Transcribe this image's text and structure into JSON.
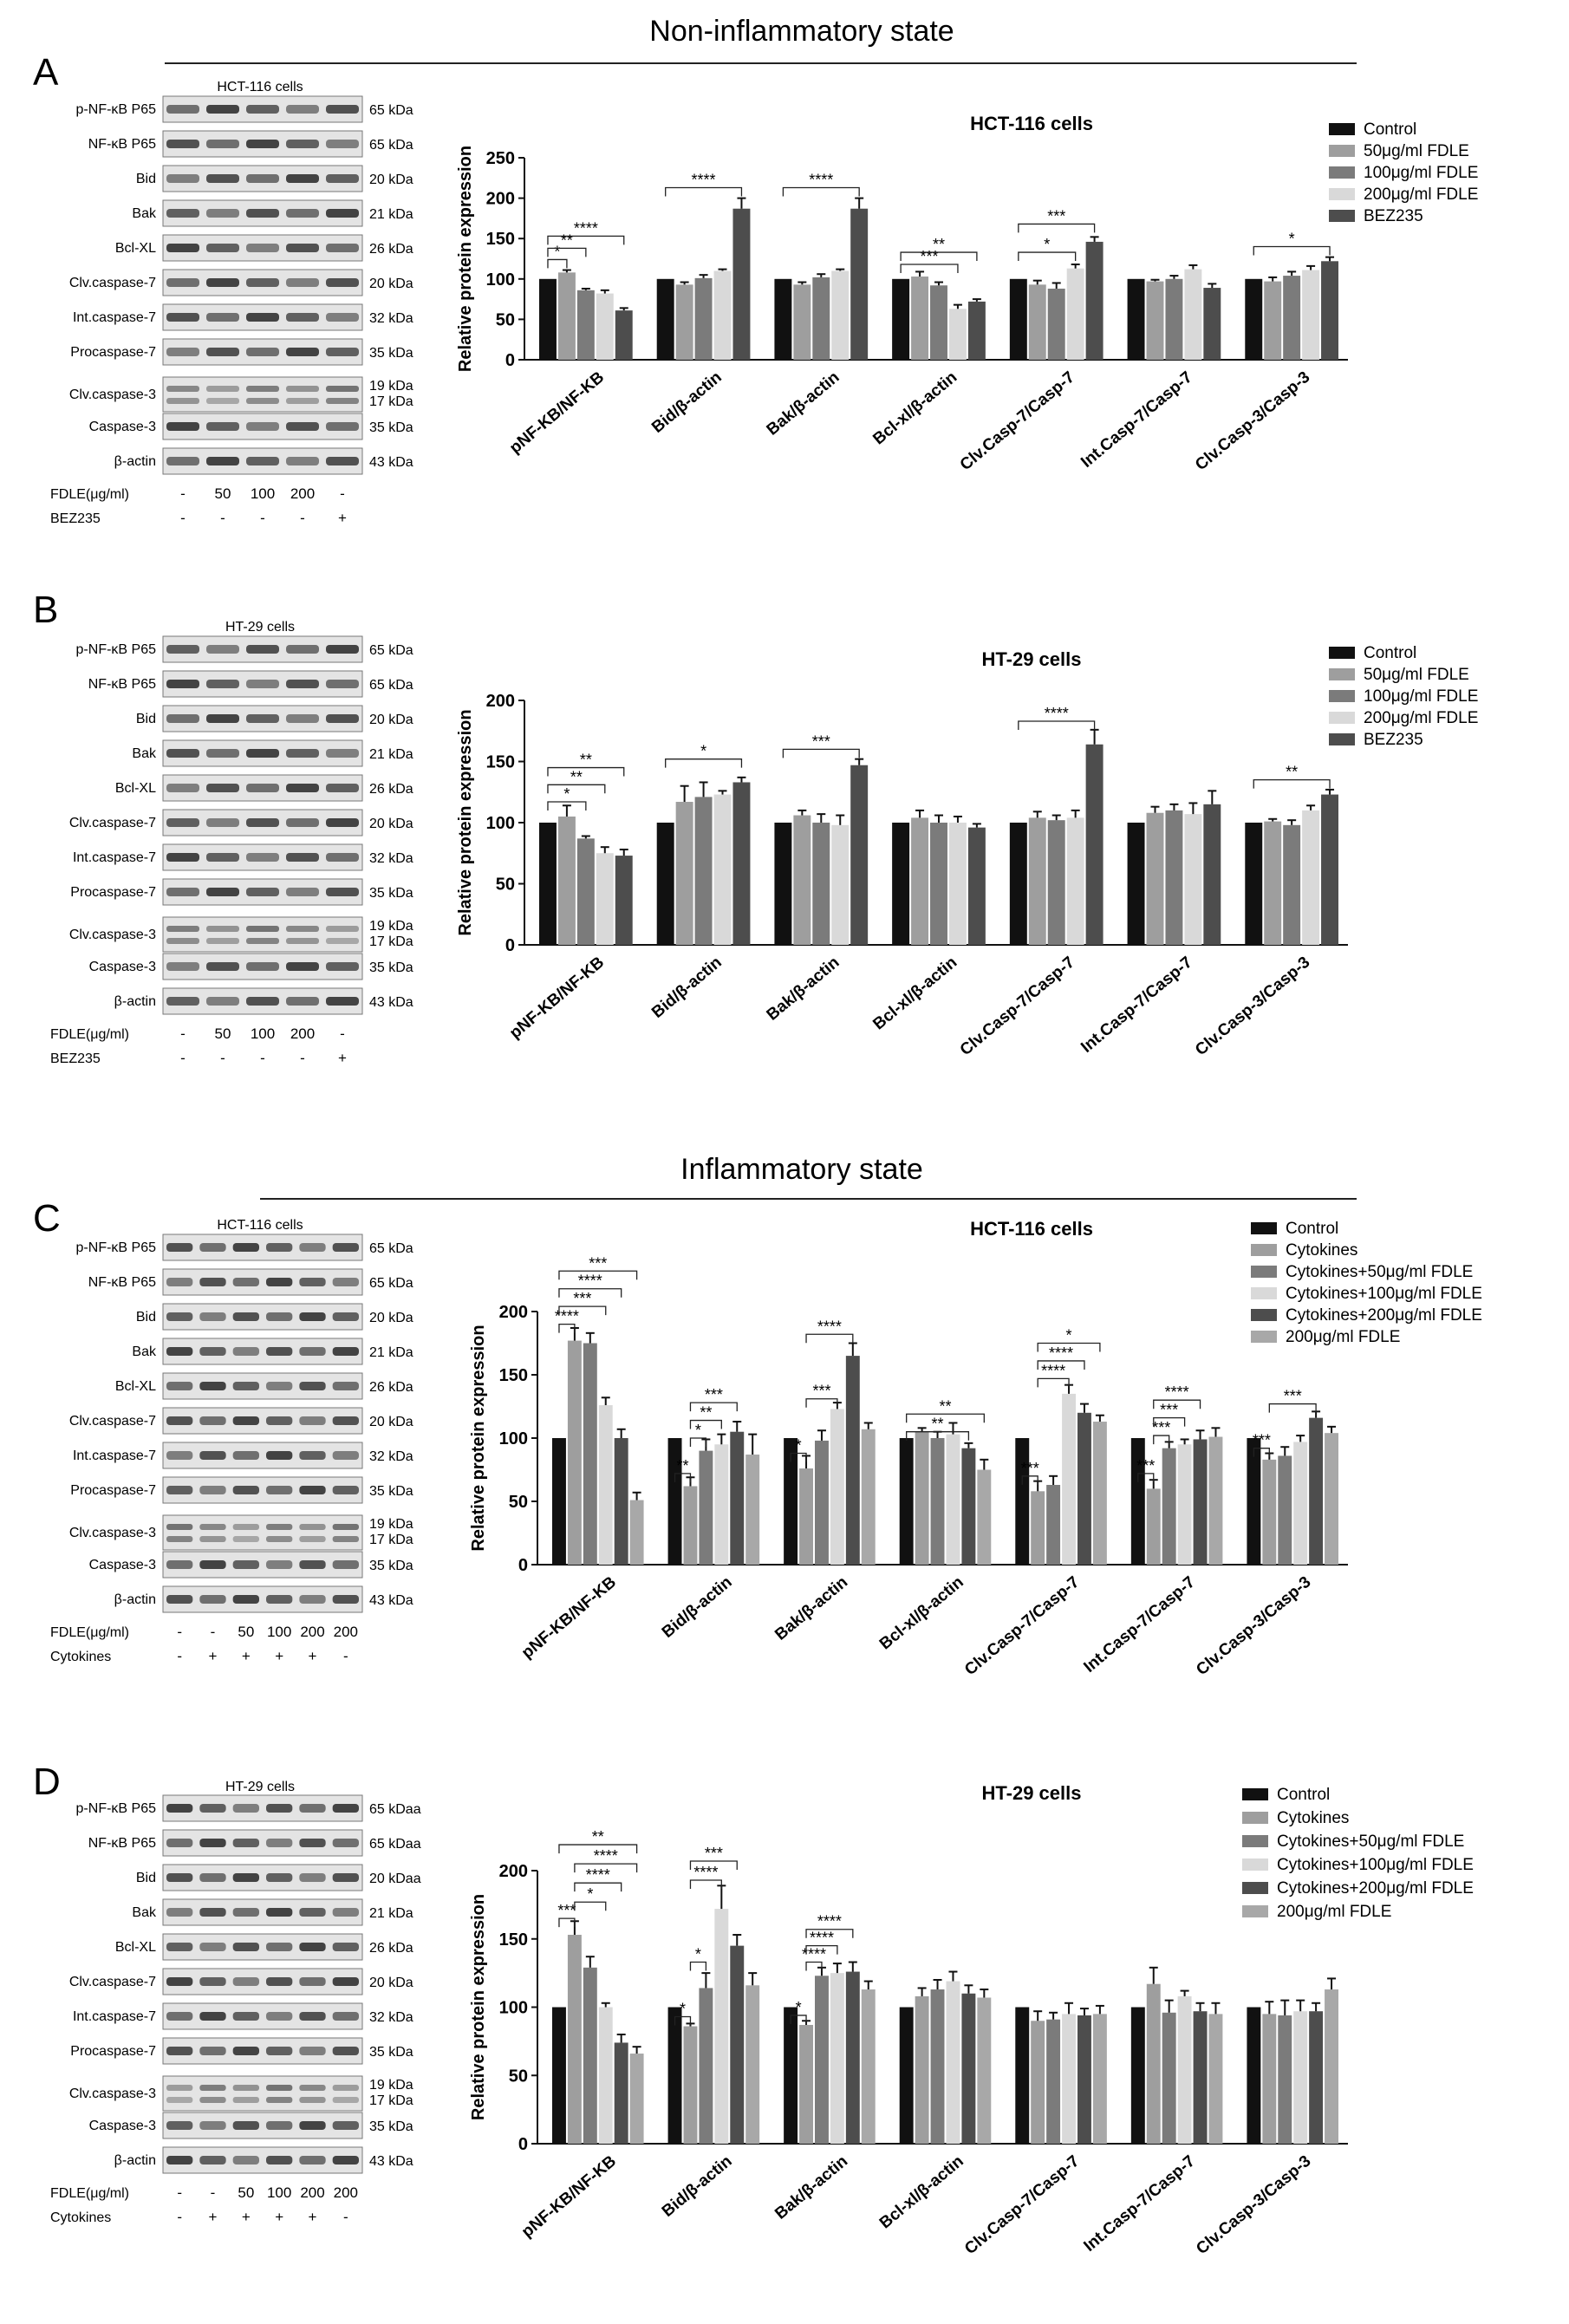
{
  "sections": {
    "noninflam": "Non-inflammatory state",
    "inflam": "Inflammatory state"
  },
  "colors": {
    "set5": [
      "#111111",
      "#9e9e9e",
      "#7b7b7b",
      "#d9d9d9",
      "#4d4d4d"
    ],
    "set6": [
      "#111111",
      "#9e9e9e",
      "#7b7b7b",
      "#d9d9d9",
      "#4d4d4d",
      "#a8a8a8"
    ],
    "blot_bg": "#e4e4e4",
    "band": "#2a2a2a"
  },
  "blot_rows": [
    {
      "label": "p-NF-κB P65",
      "kda": [
        "65 kDa"
      ]
    },
    {
      "label": "NF-κB P65",
      "kda": [
        "65 kDa"
      ]
    },
    {
      "label": "Bid",
      "kda": [
        "20 kDa"
      ]
    },
    {
      "label": "Bak",
      "kda": [
        "21 kDa"
      ]
    },
    {
      "label": "Bcl-XL",
      "kda": [
        "26 kDa"
      ]
    },
    {
      "label": "Clv.caspase-7",
      "kda": [
        "20 kDa"
      ]
    },
    {
      "label": "Int.caspase-7",
      "kda": [
        "32 kDa"
      ]
    },
    {
      "label": "Procaspase-7",
      "kda": [
        "35 kDa"
      ]
    },
    {
      "label": "Clv.caspase-3",
      "kda": [
        "19 kDa",
        "17 kDa"
      ]
    },
    {
      "label": "Caspase-3",
      "kda": [
        "35 kDa"
      ]
    },
    {
      "label": "β-actin",
      "kda": [
        "43 kDa"
      ]
    }
  ],
  "blot_rows_D": [
    {
      "label": "p-NF-κB P65",
      "kda": [
        "65 kDaa"
      ]
    },
    {
      "label": "NF-κB P65",
      "kda": [
        "65 kDaa"
      ]
    },
    {
      "label": "Bid",
      "kda": [
        "20 kDaa"
      ]
    },
    {
      "label": "Bak",
      "kda": [
        "21 kDa"
      ]
    },
    {
      "label": "Bcl-XL",
      "kda": [
        "26 kDa"
      ]
    },
    {
      "label": "Clv.caspase-7",
      "kda": [
        "20 kDa"
      ]
    },
    {
      "label": "Int.caspase-7",
      "kda": [
        "32 kDa"
      ]
    },
    {
      "label": "Procaspase-7",
      "kda": [
        "35 kDa"
      ]
    },
    {
      "label": "Clv.caspase-3",
      "kda": [
        "19 kDa",
        "17 kDa"
      ]
    },
    {
      "label": "Caspase-3",
      "kda": [
        "35 kDa"
      ]
    },
    {
      "label": "β-actin",
      "kda": [
        "43 kDa"
      ]
    }
  ],
  "treatments_noninflam": [
    {
      "label": "FDLE(μg/ml)",
      "values": [
        "-",
        "50",
        "100",
        "200",
        "-"
      ]
    },
    {
      "label": "BEZ235",
      "values": [
        "-",
        "-",
        "-",
        "-",
        "+"
      ]
    }
  ],
  "treatments_inflam": [
    {
      "label": "FDLE(μg/ml)",
      "values": [
        "-",
        "-",
        "50",
        "100",
        "200",
        "200"
      ]
    },
    {
      "label": "Cytokines",
      "values": [
        "-",
        "+",
        "+",
        "+",
        "+",
        "-"
      ]
    }
  ],
  "chart_data": [
    {
      "panel": "A",
      "type": "bar",
      "blot_title": "HCT-116 cells",
      "title": "HCT-116 cells",
      "ylabel": "Relative protein expression",
      "xlabel": "",
      "ylim": [
        0,
        250
      ],
      "yticks": [
        "0",
        "50",
        "100",
        "150",
        "200",
        "250"
      ],
      "legend_position": "top-right",
      "categories": [
        "pNF-KB/NF-KB",
        "Bid/β-actin",
        "Bak/β-actin",
        "Bcl-xl/β-actin",
        "Clv.Casp-7/Casp-7",
        "Int.Casp-7/Casp-7",
        "Clv.Casp-3/Casp-3"
      ],
      "series": [
        {
          "name": "Control",
          "values": [
            100,
            100,
            100,
            100,
            100,
            100,
            100
          ],
          "err": [
            0,
            0,
            0,
            0,
            0,
            0,
            0
          ]
        },
        {
          "name": "50μg/ml FDLE",
          "values": [
            108,
            93,
            93,
            103,
            93,
            97,
            97
          ],
          "err": [
            3,
            3,
            3,
            6,
            5,
            2,
            5
          ]
        },
        {
          "name": "100μg/ml FDLE",
          "values": [
            86,
            101,
            102,
            92,
            88,
            100,
            104
          ],
          "err": [
            2,
            4,
            4,
            4,
            7,
            4,
            5
          ]
        },
        {
          "name": "200μg/ml FDLE",
          "values": [
            82,
            110,
            110,
            63,
            113,
            112,
            111
          ],
          "err": [
            4,
            2,
            2,
            5,
            5,
            5,
            5
          ]
        },
        {
          "name": "BEZ235",
          "values": [
            61,
            187,
            187,
            72,
            146,
            89,
            122
          ],
          "err": [
            3,
            13,
            13,
            3,
            6,
            5,
            5
          ]
        }
      ],
      "sig": [
        {
          "cat": 0,
          "from": 0,
          "to": 1,
          "label": "*",
          "y": 124
        },
        {
          "cat": 0,
          "from": 0,
          "to": 2,
          "label": "**",
          "y": 138
        },
        {
          "cat": 0,
          "from": 0,
          "to": 4,
          "label": "****",
          "y": 153
        },
        {
          "cat": 1,
          "from": 0,
          "to": 4,
          "label": "****",
          "y": 213
        },
        {
          "cat": 2,
          "from": 0,
          "to": 4,
          "label": "****",
          "y": 213
        },
        {
          "cat": 3,
          "from": 0,
          "to": 3,
          "label": "***",
          "y": 118
        },
        {
          "cat": 3,
          "from": 0,
          "to": 4,
          "label": "**",
          "y": 133
        },
        {
          "cat": 4,
          "from": 0,
          "to": 3,
          "label": "*",
          "y": 133
        },
        {
          "cat": 4,
          "from": 0,
          "to": 4,
          "label": "***",
          "y": 168
        },
        {
          "cat": 6,
          "from": 0,
          "to": 4,
          "label": "*",
          "y": 140
        }
      ]
    },
    {
      "panel": "B",
      "type": "bar",
      "blot_title": "HT-29 cells",
      "title": "HT-29 cells",
      "ylabel": "Relative protein expression",
      "xlabel": "",
      "ylim": [
        0,
        200
      ],
      "yticks": [
        "0",
        "50",
        "100",
        "150",
        "200"
      ],
      "legend_position": "top-right",
      "categories": [
        "pNF-KB/NF-KB",
        "Bid/β-actin",
        "Bak/β-actin",
        "Bcl-xl/β-actin",
        "Clv.Casp-7/Casp-7",
        "Int.Casp-7/Casp-7",
        "Clv.Casp-3/Casp-3"
      ],
      "series": [
        {
          "name": "Control",
          "values": [
            100,
            100,
            100,
            100,
            100,
            100,
            100
          ],
          "err": [
            0,
            0,
            0,
            0,
            0,
            0,
            0
          ]
        },
        {
          "name": "50μg/ml FDLE",
          "values": [
            105,
            117,
            106,
            104,
            104,
            108,
            101
          ],
          "err": [
            9,
            13,
            4,
            6,
            5,
            5,
            2
          ]
        },
        {
          "name": "100μg/ml FDLE",
          "values": [
            87,
            121,
            100,
            100,
            102,
            110,
            98
          ],
          "err": [
            2,
            12,
            7,
            6,
            4,
            5,
            4
          ]
        },
        {
          "name": "200μg/ml FDLE",
          "values": [
            75,
            123,
            98,
            100,
            104,
            107,
            110
          ],
          "err": [
            5,
            3,
            8,
            5,
            6,
            9,
            4
          ]
        },
        {
          "name": "BEZ235",
          "values": [
            73,
            133,
            147,
            96,
            164,
            115,
            123
          ],
          "err": [
            5,
            4,
            5,
            3,
            12,
            11,
            4
          ]
        }
      ],
      "sig": [
        {
          "cat": 0,
          "from": 0,
          "to": 2,
          "label": "*",
          "y": 117
        },
        {
          "cat": 0,
          "from": 0,
          "to": 3,
          "label": "**",
          "y": 131
        },
        {
          "cat": 0,
          "from": 0,
          "to": 4,
          "label": "**",
          "y": 145
        },
        {
          "cat": 1,
          "from": 0,
          "to": 4,
          "label": "*",
          "y": 152
        },
        {
          "cat": 2,
          "from": 0,
          "to": 4,
          "label": "***",
          "y": 160
        },
        {
          "cat": 4,
          "from": 0,
          "to": 4,
          "label": "****",
          "y": 183
        },
        {
          "cat": 6,
          "from": 0,
          "to": 4,
          "label": "**",
          "y": 135
        }
      ]
    },
    {
      "panel": "C",
      "type": "bar",
      "blot_title": "HCT-116 cells",
      "title": "HCT-116  cells",
      "ylabel": "Relative protein expression",
      "xlabel": "",
      "ylim": [
        0,
        200
      ],
      "yticks": [
        "0",
        "50",
        "100",
        "150",
        "200"
      ],
      "legend_position": "top-right",
      "categories": [
        "pNF-KB/NF-KB",
        "Bid/β-actin",
        "Bak/β-actin",
        "Bcl-xl/β-actin",
        "Clv.Casp-7/Casp-7",
        "Int.Casp-7/Casp-7",
        "Clv.Casp-3/Casp-3"
      ],
      "series": [
        {
          "name": "Control",
          "values": [
            100,
            100,
            100,
            100,
            100,
            100,
            100
          ],
          "err": [
            0,
            0,
            0,
            0,
            0,
            0,
            0
          ]
        },
        {
          "name": "Cytokines",
          "values": [
            177,
            62,
            76,
            105,
            58,
            60,
            83
          ],
          "err": [
            10,
            7,
            10,
            3,
            8,
            7,
            5
          ]
        },
        {
          "name": "Cytokines+50μg/ml FDLE",
          "values": [
            175,
            90,
            98,
            100,
            63,
            92,
            86
          ],
          "err": [
            8,
            9,
            8,
            5,
            7,
            5,
            7
          ]
        },
        {
          "name": "Cytokines+100μg/ml FDLE",
          "values": [
            126,
            95,
            123,
            103,
            135,
            95,
            97
          ],
          "err": [
            6,
            8,
            5,
            9,
            7,
            4,
            5
          ]
        },
        {
          "name": "Cytokines+200μg/ml FDLE",
          "values": [
            100,
            105,
            165,
            92,
            120,
            99,
            116
          ],
          "err": [
            7,
            8,
            10,
            4,
            7,
            7,
            5
          ]
        },
        {
          "name": "200μg/ml FDLE",
          "values": [
            51,
            87,
            107,
            75,
            113,
            101,
            104
          ],
          "err": [
            6,
            16,
            5,
            8,
            5,
            7,
            5
          ]
        }
      ],
      "sig": [
        {
          "cat": 0,
          "from": 0,
          "to": 1,
          "label": "****",
          "y": 190
        },
        {
          "cat": 0,
          "from": 0,
          "to": 3,
          "label": "***",
          "y": 204
        },
        {
          "cat": 0,
          "from": 0,
          "to": 4,
          "label": "****",
          "y": 218
        },
        {
          "cat": 0,
          "from": 0,
          "to": 5,
          "label": "***",
          "y": 232
        },
        {
          "cat": 1,
          "from": 0,
          "to": 1,
          "label": "**",
          "y": 72
        },
        {
          "cat": 1,
          "from": 1,
          "to": 2,
          "label": "*",
          "y": 100
        },
        {
          "cat": 1,
          "from": 1,
          "to": 3,
          "label": "**",
          "y": 114
        },
        {
          "cat": 1,
          "from": 1,
          "to": 4,
          "label": "***",
          "y": 128
        },
        {
          "cat": 2,
          "from": 0,
          "to": 1,
          "label": "*",
          "y": 88
        },
        {
          "cat": 2,
          "from": 1,
          "to": 3,
          "label": "***",
          "y": 131
        },
        {
          "cat": 2,
          "from": 1,
          "to": 4,
          "label": "****",
          "y": 182
        },
        {
          "cat": 3,
          "from": 0,
          "to": 4,
          "label": "**",
          "y": 105
        },
        {
          "cat": 3,
          "from": 0,
          "to": 5,
          "label": "**",
          "y": 119
        },
        {
          "cat": 4,
          "from": 0,
          "to": 1,
          "label": "***",
          "y": 70
        },
        {
          "cat": 4,
          "from": 1,
          "to": 3,
          "label": "****",
          "y": 147
        },
        {
          "cat": 4,
          "from": 1,
          "to": 4,
          "label": "****",
          "y": 161
        },
        {
          "cat": 4,
          "from": 1,
          "to": 5,
          "label": "*",
          "y": 175
        },
        {
          "cat": 5,
          "from": 0,
          "to": 1,
          "label": "***",
          "y": 72
        },
        {
          "cat": 5,
          "from": 1,
          "to": 2,
          "label": "***",
          "y": 102
        },
        {
          "cat": 5,
          "from": 1,
          "to": 3,
          "label": "***",
          "y": 116
        },
        {
          "cat": 5,
          "from": 1,
          "to": 4,
          "label": "****",
          "y": 130
        },
        {
          "cat": 6,
          "from": 0,
          "to": 1,
          "label": "***",
          "y": 92
        },
        {
          "cat": 6,
          "from": 1,
          "to": 4,
          "label": "***",
          "y": 127
        }
      ]
    },
    {
      "panel": "D",
      "type": "bar",
      "blot_title": "HT-29 cells",
      "title": "HT-29 cells",
      "ylabel": "Relative protein expression",
      "xlabel": "",
      "ylim": [
        0,
        200
      ],
      "yticks": [
        "0",
        "50",
        "100",
        "150",
        "200"
      ],
      "legend_position": "top-right",
      "categories": [
        "pNF-KB/NF-KB",
        "Bid/β-actin",
        "Bak/β-actin",
        "Bcl-xl/β-actin",
        "Clv.Casp-7/Casp-7",
        "Int.Casp-7/Casp-7",
        "Clv.Casp-3/Casp-3"
      ],
      "series": [
        {
          "name": "Control",
          "values": [
            100,
            100,
            100,
            100,
            100,
            100,
            100
          ],
          "err": [
            0,
            0,
            0,
            0,
            0,
            0,
            0
          ]
        },
        {
          "name": "Cytokines",
          "values": [
            153,
            86,
            87,
            108,
            90,
            117,
            95
          ],
          "err": [
            10,
            2,
            3,
            6,
            7,
            12,
            9
          ]
        },
        {
          "name": "Cytokines+50μg/ml FDLE",
          "values": [
            129,
            114,
            123,
            113,
            91,
            96,
            94
          ],
          "err": [
            8,
            11,
            6,
            7,
            5,
            9,
            11
          ]
        },
        {
          "name": "Cytokines+100μg/ml FDLE",
          "values": [
            100,
            172,
            125,
            119,
            95,
            108,
            97
          ],
          "err": [
            3,
            17,
            7,
            7,
            8,
            4,
            8
          ]
        },
        {
          "name": "Cytokines+200μg/ml FDLE",
          "values": [
            74,
            145,
            126,
            110,
            94,
            97,
            97
          ],
          "err": [
            6,
            8,
            7,
            6,
            5,
            6,
            6
          ]
        },
        {
          "name": "200μg/ml FDLE",
          "values": [
            66,
            116,
            113,
            107,
            95,
            95,
            113
          ],
          "err": [
            5,
            9,
            6,
            6,
            6,
            8,
            8
          ]
        }
      ],
      "sig": [
        {
          "cat": 0,
          "from": 0,
          "to": 1,
          "label": "***",
          "y": 165
        },
        {
          "cat": 0,
          "from": 1,
          "to": 3,
          "label": "*",
          "y": 177
        },
        {
          "cat": 0,
          "from": 1,
          "to": 4,
          "label": "****",
          "y": 191
        },
        {
          "cat": 0,
          "from": 1,
          "to": 5,
          "label": "****",
          "y": 205
        },
        {
          "cat": 0,
          "from": 0,
          "to": 5,
          "label": "**",
          "y": 219
        },
        {
          "cat": 1,
          "from": 0,
          "to": 1,
          "label": "*",
          "y": 93
        },
        {
          "cat": 1,
          "from": 1,
          "to": 2,
          "label": "*",
          "y": 133
        },
        {
          "cat": 1,
          "from": 1,
          "to": 3,
          "label": "****",
          "y": 193
        },
        {
          "cat": 1,
          "from": 1,
          "to": 4,
          "label": "***",
          "y": 207
        },
        {
          "cat": 2,
          "from": 0,
          "to": 1,
          "label": "*",
          "y": 94
        },
        {
          "cat": 2,
          "from": 1,
          "to": 2,
          "label": "****",
          "y": 133
        },
        {
          "cat": 2,
          "from": 1,
          "to": 3,
          "label": "****",
          "y": 145
        },
        {
          "cat": 2,
          "from": 1,
          "to": 4,
          "label": "****",
          "y": 157
        }
      ]
    }
  ]
}
